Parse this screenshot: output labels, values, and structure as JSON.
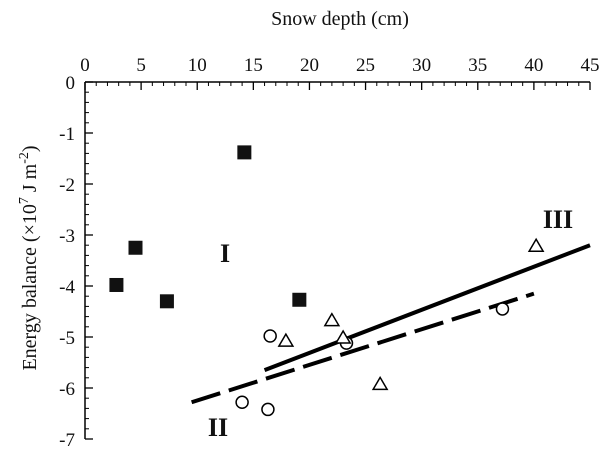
{
  "chart_data": {
    "type": "scatter",
    "xlabel": "Snow depth (cm)",
    "ylabel": {
      "prefix": "Energy balance (×10",
      "exp1": "7",
      "mid": " J m",
      "exp2": "-2",
      "suffix": ")"
    },
    "xlim": [
      0,
      45
    ],
    "ylim": [
      -7,
      0
    ],
    "x_ticks": [
      "0",
      "5",
      "10",
      "15",
      "20",
      "25",
      "30",
      "35",
      "40",
      "45"
    ],
    "y_ticks": [
      "0",
      "-1",
      "-2",
      "-3",
      "-4",
      "-5",
      "-6",
      "-7"
    ],
    "x_axis_position": "top",
    "grid": false,
    "series": [
      {
        "marker": "filled-square",
        "points": [
          {
            "x": 2.8,
            "y": -3.98
          },
          {
            "x": 4.5,
            "y": -3.25
          },
          {
            "x": 7.3,
            "y": -4.3
          },
          {
            "x": 14.2,
            "y": -1.38
          },
          {
            "x": 19.1,
            "y": -4.27
          }
        ]
      },
      {
        "marker": "open-circle",
        "points": [
          {
            "x": 14.0,
            "y": -6.28
          },
          {
            "x": 16.5,
            "y": -4.98
          },
          {
            "x": 16.3,
            "y": -6.42
          },
          {
            "x": 23.3,
            "y": -5.12
          },
          {
            "x": 37.2,
            "y": -4.45
          }
        ]
      },
      {
        "marker": "open-triangle",
        "points": [
          {
            "x": 17.9,
            "y": -5.08
          },
          {
            "x": 22.0,
            "y": -4.68
          },
          {
            "x": 23.0,
            "y": -5.02
          },
          {
            "x": 26.3,
            "y": -5.93
          },
          {
            "x": 40.2,
            "y": -3.22
          }
        ]
      }
    ],
    "fit_lines": [
      {
        "style": "solid",
        "from": {
          "x": 16.0,
          "y": -5.65
        },
        "to": {
          "x": 45.0,
          "y": -3.2
        }
      },
      {
        "style": "dashed",
        "from": {
          "x": 9.5,
          "y": -6.28
        },
        "to": {
          "x": 40.0,
          "y": -4.15
        }
      }
    ],
    "annotations": [
      "I",
      "II",
      "III"
    ]
  }
}
